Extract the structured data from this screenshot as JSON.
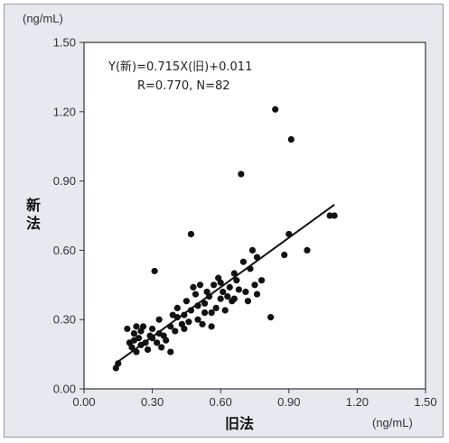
{
  "chart_data": {
    "type": "scatter",
    "xlabel": "旧法",
    "ylabel": "新法",
    "x_unit": "(ng/mL)",
    "y_unit": "(ng/mL)",
    "xlim": [
      0.0,
      1.5
    ],
    "ylim": [
      0.0,
      1.5
    ],
    "x_ticks": [
      "0.00",
      "0.30",
      "0.60",
      "0.90",
      "1.20",
      "1.50"
    ],
    "y_ticks": [
      "0.00",
      "0.30",
      "0.60",
      "0.90",
      "1.20",
      "1.50"
    ],
    "grid": false,
    "annotation": {
      "line1": "Y(新)=0.715X(旧)+0.011",
      "line2": "R=0.770, N=82"
    },
    "regression": {
      "slope": 0.715,
      "intercept": 0.011,
      "x_range": [
        0.14,
        1.1
      ]
    },
    "points": [
      {
        "x": 0.14,
        "y": 0.09
      },
      {
        "x": 0.15,
        "y": 0.11
      },
      {
        "x": 0.19,
        "y": 0.26
      },
      {
        "x": 0.2,
        "y": 0.2
      },
      {
        "x": 0.21,
        "y": 0.18
      },
      {
        "x": 0.22,
        "y": 0.21
      },
      {
        "x": 0.23,
        "y": 0.16
      },
      {
        "x": 0.23,
        "y": 0.27
      },
      {
        "x": 0.24,
        "y": 0.22
      },
      {
        "x": 0.25,
        "y": 0.19
      },
      {
        "x": 0.25,
        "y": 0.25
      },
      {
        "x": 0.26,
        "y": 0.27
      },
      {
        "x": 0.27,
        "y": 0.2
      },
      {
        "x": 0.28,
        "y": 0.17
      },
      {
        "x": 0.29,
        "y": 0.23
      },
      {
        "x": 0.3,
        "y": 0.26
      },
      {
        "x": 0.31,
        "y": 0.51
      },
      {
        "x": 0.32,
        "y": 0.2
      },
      {
        "x": 0.33,
        "y": 0.24
      },
      {
        "x": 0.33,
        "y": 0.3
      },
      {
        "x": 0.34,
        "y": 0.18
      },
      {
        "x": 0.35,
        "y": 0.23
      },
      {
        "x": 0.38,
        "y": 0.27
      },
      {
        "x": 0.38,
        "y": 0.16
      },
      {
        "x": 0.4,
        "y": 0.25
      },
      {
        "x": 0.41,
        "y": 0.31
      },
      {
        "x": 0.41,
        "y": 0.35
      },
      {
        "x": 0.43,
        "y": 0.28
      },
      {
        "x": 0.44,
        "y": 0.32
      },
      {
        "x": 0.45,
        "y": 0.38
      },
      {
        "x": 0.46,
        "y": 0.29
      },
      {
        "x": 0.47,
        "y": 0.67
      },
      {
        "x": 0.47,
        "y": 0.34
      },
      {
        "x": 0.48,
        "y": 0.44
      },
      {
        "x": 0.49,
        "y": 0.41
      },
      {
        "x": 0.5,
        "y": 0.3
      },
      {
        "x": 0.5,
        "y": 0.36
      },
      {
        "x": 0.51,
        "y": 0.45
      },
      {
        "x": 0.52,
        "y": 0.28
      },
      {
        "x": 0.53,
        "y": 0.37
      },
      {
        "x": 0.54,
        "y": 0.42
      },
      {
        "x": 0.55,
        "y": 0.4
      },
      {
        "x": 0.56,
        "y": 0.33
      },
      {
        "x": 0.56,
        "y": 0.27
      },
      {
        "x": 0.57,
        "y": 0.45
      },
      {
        "x": 0.58,
        "y": 0.35
      },
      {
        "x": 0.59,
        "y": 0.48
      },
      {
        "x": 0.6,
        "y": 0.39
      },
      {
        "x": 0.61,
        "y": 0.42
      },
      {
        "x": 0.62,
        "y": 0.34
      },
      {
        "x": 0.63,
        "y": 0.4
      },
      {
        "x": 0.64,
        "y": 0.44
      },
      {
        "x": 0.65,
        "y": 0.38
      },
      {
        "x": 0.66,
        "y": 0.5
      },
      {
        "x": 0.67,
        "y": 0.47
      },
      {
        "x": 0.68,
        "y": 0.43
      },
      {
        "x": 0.69,
        "y": 0.93
      },
      {
        "x": 0.7,
        "y": 0.55
      },
      {
        "x": 0.71,
        "y": 0.42
      },
      {
        "x": 0.72,
        "y": 0.38
      },
      {
        "x": 0.73,
        "y": 0.52
      },
      {
        "x": 0.74,
        "y": 0.6
      },
      {
        "x": 0.75,
        "y": 0.45
      },
      {
        "x": 0.76,
        "y": 0.41
      },
      {
        "x": 0.76,
        "y": 0.57
      },
      {
        "x": 0.78,
        "y": 0.47
      },
      {
        "x": 0.82,
        "y": 0.31
      },
      {
        "x": 0.84,
        "y": 1.21
      },
      {
        "x": 0.88,
        "y": 0.58
      },
      {
        "x": 0.9,
        "y": 0.67
      },
      {
        "x": 0.91,
        "y": 1.08
      },
      {
        "x": 0.98,
        "y": 0.6
      },
      {
        "x": 1.08,
        "y": 0.75
      },
      {
        "x": 1.1,
        "y": 0.75
      },
      {
        "x": 0.36,
        "y": 0.21
      },
      {
        "x": 0.39,
        "y": 0.32
      },
      {
        "x": 0.44,
        "y": 0.26
      },
      {
        "x": 0.53,
        "y": 0.33
      },
      {
        "x": 0.6,
        "y": 0.46
      },
      {
        "x": 0.66,
        "y": 0.39
      },
      {
        "x": 0.22,
        "y": 0.24
      },
      {
        "x": 0.3,
        "y": 0.22
      }
    ]
  }
}
